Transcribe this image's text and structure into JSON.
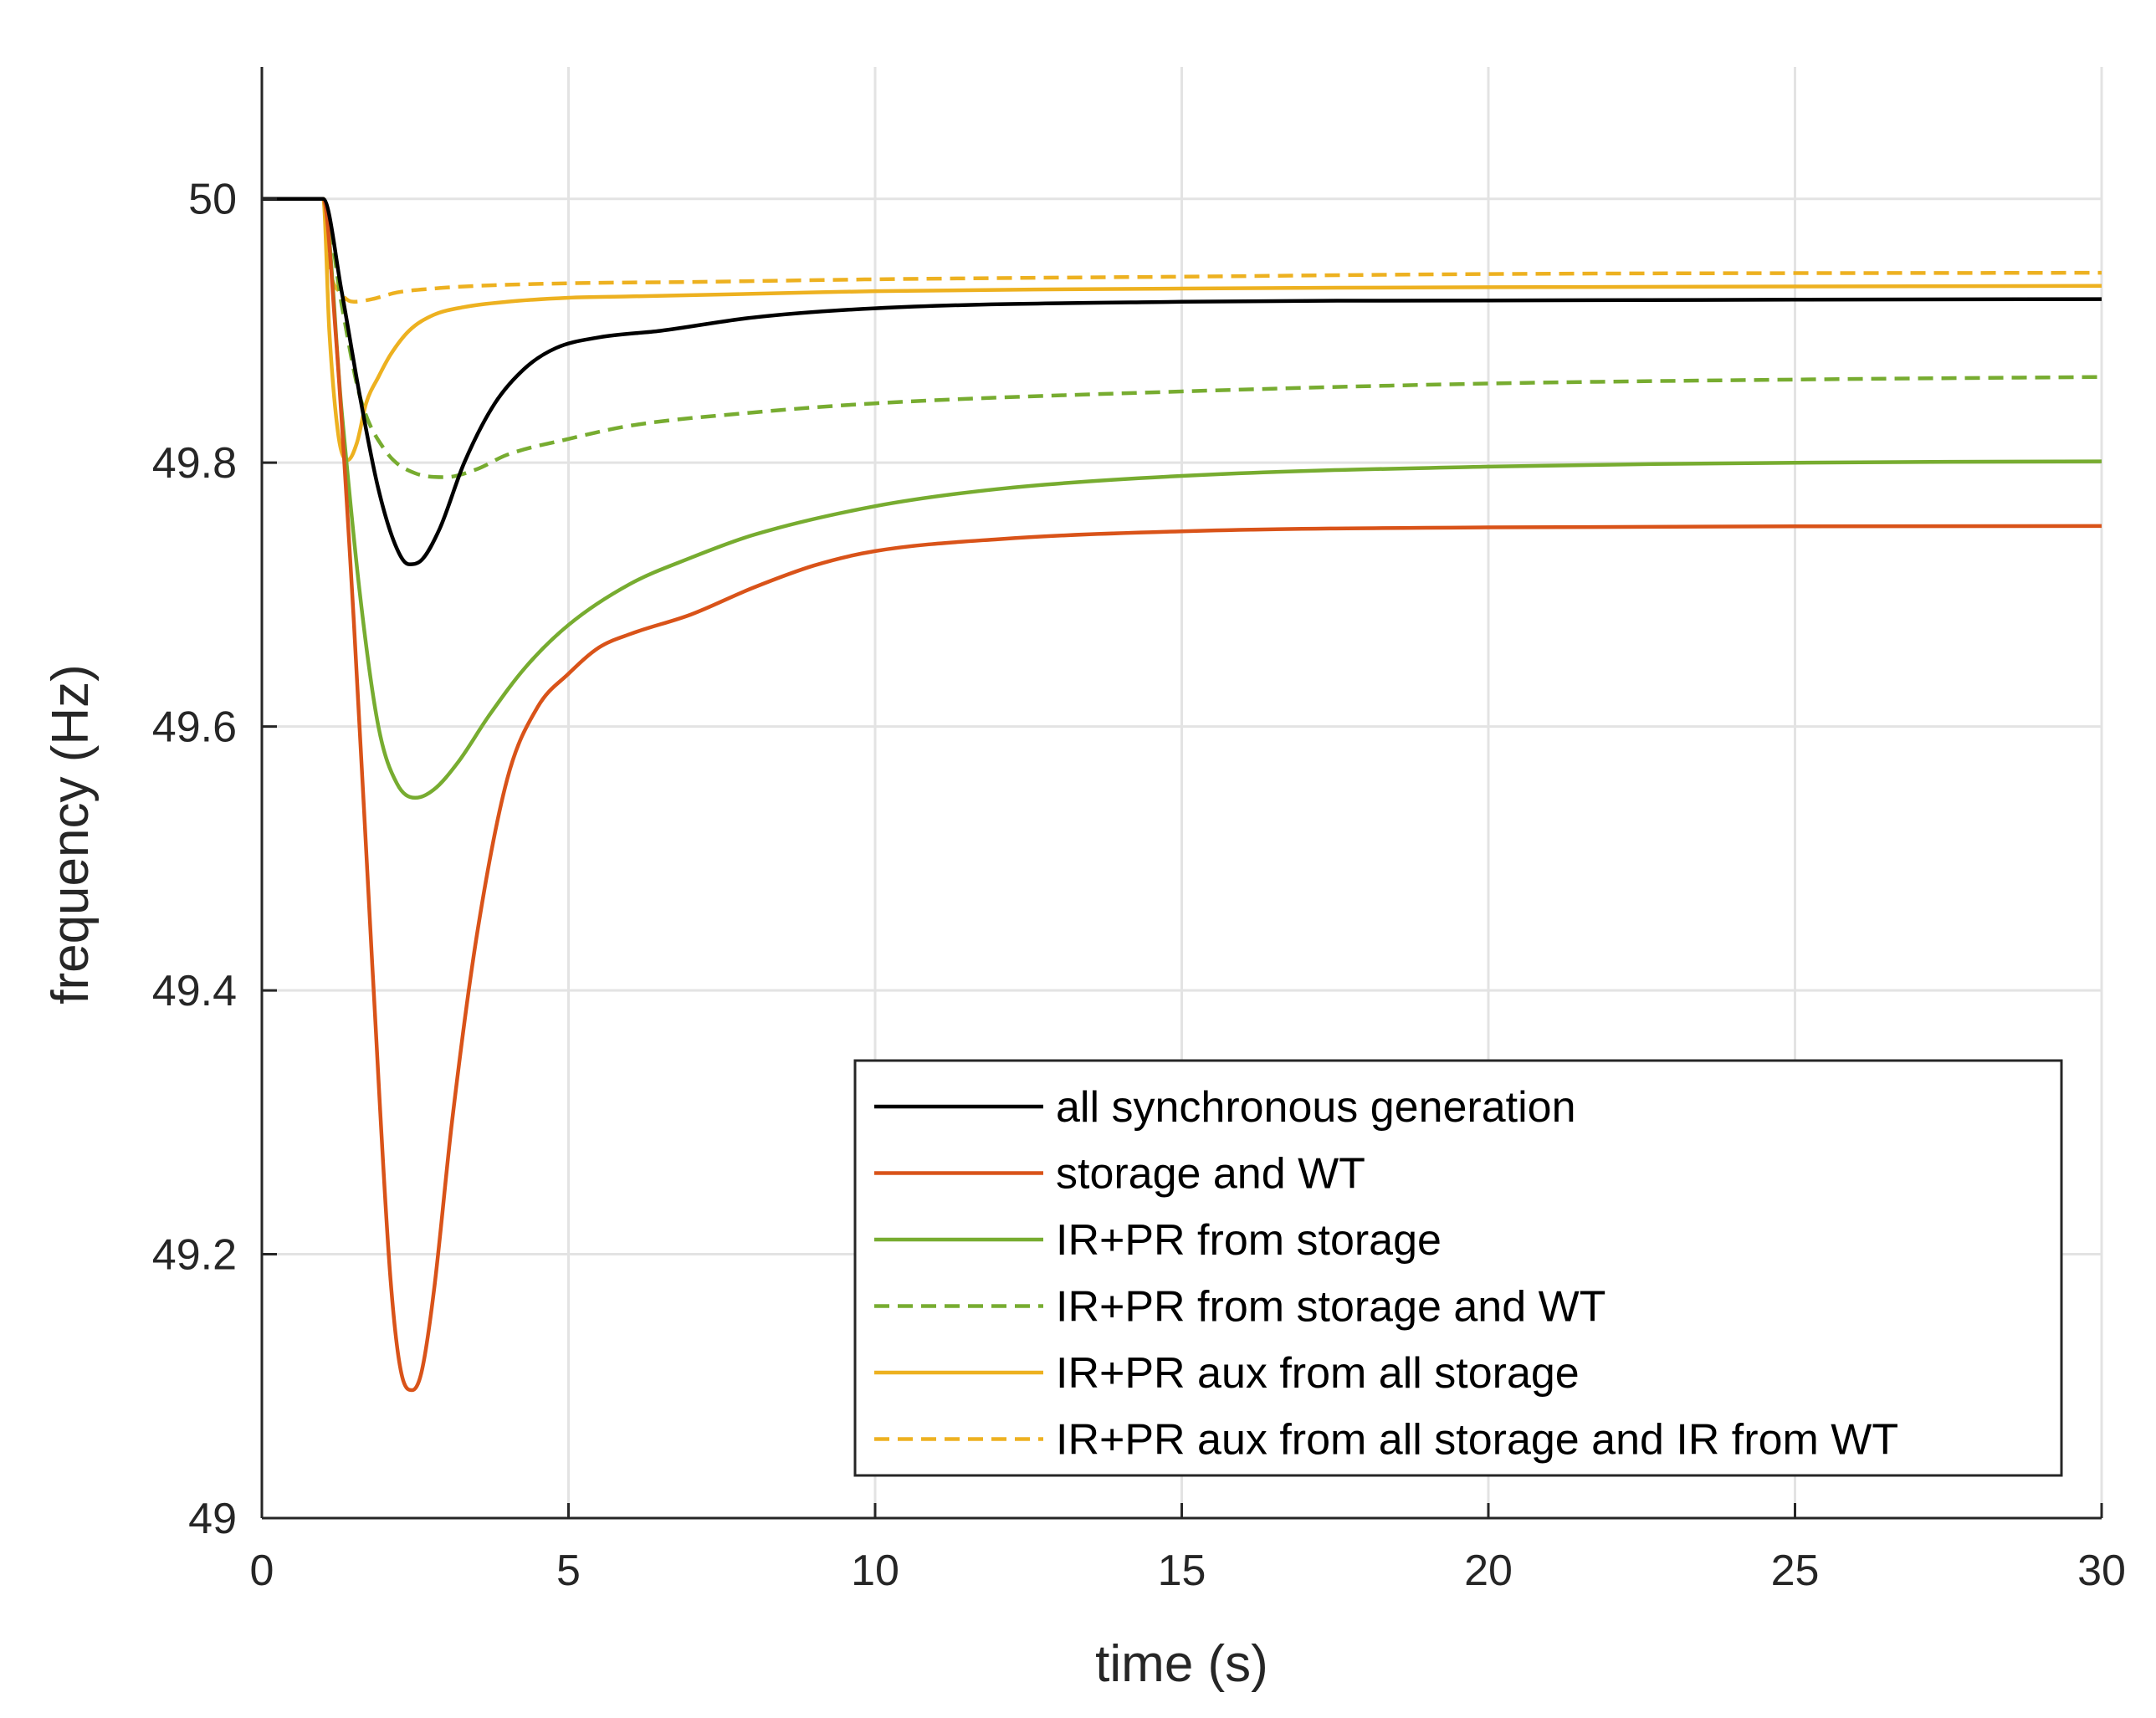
{
  "chart_data": {
    "type": "line",
    "title": "",
    "xlabel": "time (s)",
    "ylabel": "frequency (Hz)",
    "xlim": [
      0,
      30
    ],
    "ylim": [
      49,
      50.1
    ],
    "xticks": [
      0,
      5,
      10,
      15,
      20,
      25,
      30
    ],
    "yticks": [
      49,
      49.2,
      49.4,
      49.6,
      49.8,
      50
    ],
    "xtick_labels": [
      "0",
      "5",
      "10",
      "15",
      "20",
      "25",
      "30"
    ],
    "ytick_labels": [
      "49",
      "49.2",
      "49.4",
      "49.6",
      "49.8",
      "50"
    ],
    "grid": true,
    "legend_position": "bottom-right",
    "series": [
      {
        "name": "all synchronous generation",
        "color": "#000000",
        "dash": "solid",
        "x": [
          0,
          1,
          1.3,
          1.6,
          1.9,
          2.2,
          2.4,
          2.6,
          2.9,
          3.3,
          3.8,
          4.3,
          4.8,
          5.5,
          6.5,
          8,
          10,
          15,
          20,
          30
        ],
        "y": [
          50,
          50,
          49.93,
          49.85,
          49.78,
          49.735,
          49.723,
          49.726,
          49.75,
          49.8,
          49.845,
          49.872,
          49.887,
          49.895,
          49.9,
          49.91,
          49.917,
          49.922,
          49.923,
          49.924
        ]
      },
      {
        "name": "storage and WT",
        "color": "#D95319",
        "dash": "solid",
        "x": [
          0,
          1,
          1.2,
          1.5,
          1.8,
          2.1,
          2.3,
          2.45,
          2.6,
          2.8,
          3.1,
          3.5,
          4,
          4.5,
          5,
          5.5,
          6,
          7,
          8,
          9,
          10,
          12,
          15,
          20,
          30
        ],
        "y": [
          50,
          50,
          49.9,
          49.68,
          49.42,
          49.18,
          49.105,
          49.097,
          49.11,
          49.17,
          49.3,
          49.44,
          49.56,
          49.615,
          49.64,
          49.66,
          49.67,
          49.685,
          49.705,
          49.722,
          49.733,
          49.742,
          49.748,
          49.751,
          49.752
        ]
      },
      {
        "name": "IR+PR from storage",
        "color": "#77AC30",
        "dash": "solid",
        "x": [
          0,
          1,
          1.3,
          1.6,
          1.9,
          2.2,
          2.5,
          2.8,
          3.2,
          3.7,
          4.3,
          5,
          6,
          7,
          8,
          10,
          12,
          15,
          20,
          25,
          30
        ],
        "y": [
          50,
          50,
          49.84,
          49.7,
          49.6,
          49.557,
          49.546,
          49.552,
          49.573,
          49.608,
          49.645,
          49.677,
          49.708,
          49.728,
          49.745,
          49.767,
          49.78,
          49.79,
          49.797,
          49.8,
          49.801
        ]
      },
      {
        "name": "IR+PR from storage and WT",
        "color": "#77AC30",
        "dash": "dashed",
        "x": [
          0,
          1,
          1.3,
          1.6,
          2,
          2.5,
          3,
          3.5,
          4,
          5,
          6,
          8,
          10,
          15,
          20,
          25,
          30
        ],
        "y": [
          50,
          50,
          49.92,
          49.85,
          49.81,
          49.792,
          49.789,
          49.795,
          49.806,
          49.818,
          49.828,
          49.838,
          49.845,
          49.854,
          49.86,
          49.863,
          49.865
        ]
      },
      {
        "name": "IR+PR aux from all storage",
        "color": "#EDB120",
        "dash": "solid",
        "x": [
          0,
          1,
          1.1,
          1.25,
          1.4,
          1.55,
          1.7,
          1.9,
          2.1,
          2.4,
          2.8,
          3.3,
          4,
          5,
          6,
          8,
          10,
          15,
          20,
          30
        ],
        "y": [
          50,
          50,
          49.9,
          49.82,
          49.802,
          49.815,
          49.845,
          49.865,
          49.882,
          49.9,
          49.912,
          49.918,
          49.922,
          49.925,
          49.926,
          49.928,
          49.93,
          49.932,
          49.933,
          49.934
        ]
      },
      {
        "name": "IR+PR aux from all storage and IR from WT",
        "color": "#EDB120",
        "dash": "dashed",
        "x": [
          0,
          1,
          1.1,
          1.3,
          1.5,
          1.8,
          2.2,
          2.8,
          3.5,
          5,
          7,
          10,
          15,
          20,
          30
        ],
        "y": [
          50,
          50,
          49.95,
          49.928,
          49.922,
          49.924,
          49.929,
          49.932,
          49.934,
          49.936,
          49.937,
          49.939,
          49.941,
          49.943,
          49.944
        ]
      }
    ]
  }
}
